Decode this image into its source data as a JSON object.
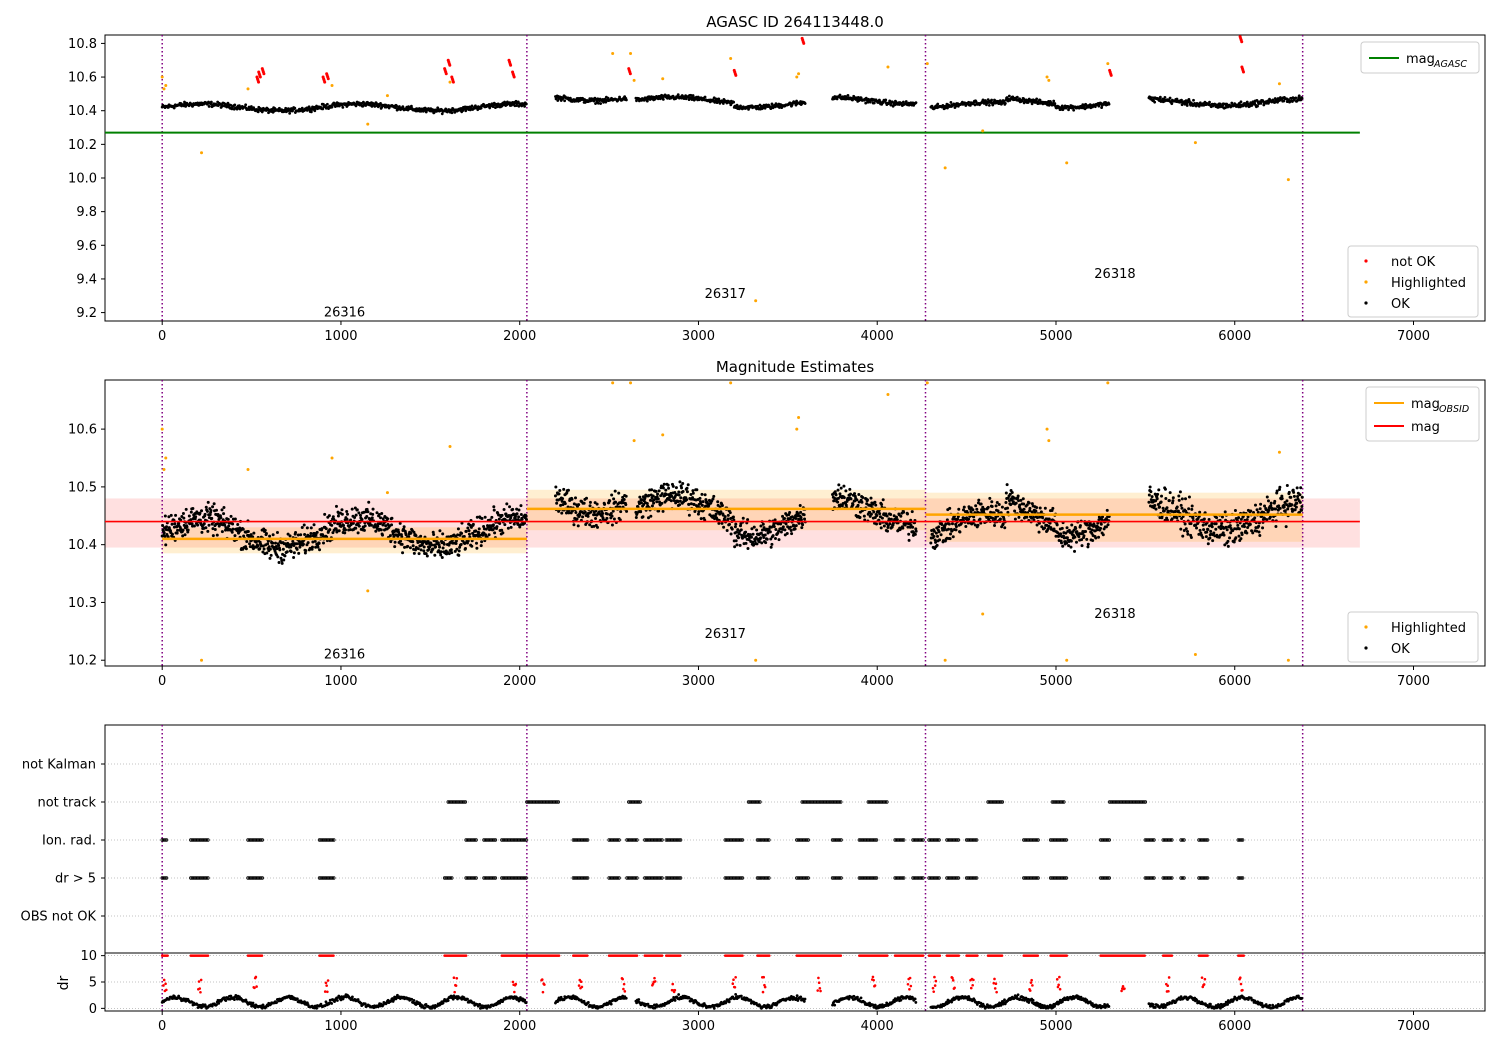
{
  "chart_data": [
    {
      "type": "scatter",
      "title": "AGASC ID 264113448.0",
      "xlabel": "",
      "ylabel": "",
      "xlim": [
        -320,
        7400
      ],
      "ylim": [
        9.15,
        10.85
      ],
      "x_ticks": [
        "0",
        "1000",
        "2000",
        "3000",
        "4000",
        "5000",
        "6000",
        "7000"
      ],
      "y_ticks": [
        "9.2",
        "9.4",
        "9.6",
        "9.8",
        "10.0",
        "10.2",
        "10.4",
        "10.6",
        "10.8"
      ],
      "obsid_boundaries": [
        0,
        2040,
        4270,
        6380
      ],
      "obsid_labels": [
        {
          "text": "26316",
          "x": 1020,
          "y": 9.2
        },
        {
          "text": "26317",
          "x": 3150,
          "y": 9.31
        },
        {
          "text": "26318",
          "x": 5330,
          "y": 9.43
        }
      ],
      "mag_agasc": 10.27,
      "mag_agasc_xrange": [
        -320,
        6700
      ],
      "legend_lines": [
        {
          "name": "mag",
          "sub": "AGASC",
          "color": "#008000"
        }
      ],
      "legend_points": [
        {
          "name": "not OK",
          "color": "#ff0000"
        },
        {
          "name": "Highlighted",
          "color": "#ffa500"
        },
        {
          "name": "OK",
          "color": "#000000"
        }
      ],
      "legend_placement_lines": "top-right",
      "legend_placement_points": "lower-right",
      "series": [
        {
          "name": "OK",
          "color": "#000000",
          "segments": [
            {
              "x0": 0,
              "x1": 2040,
              "base": 10.42,
              "noise": 0.03
            },
            {
              "x0": 2200,
              "x1": 2600,
              "base": 10.48,
              "noise": 0.03
            },
            {
              "x0": 2650,
              "x1": 3200,
              "base": 10.46,
              "noise": 0.03
            },
            {
              "x0": 3200,
              "x1": 3600,
              "base": 10.44,
              "noise": 0.03
            },
            {
              "x0": 3750,
              "x1": 4220,
              "base": 10.46,
              "noise": 0.03
            },
            {
              "x0": 4300,
              "x1": 4720,
              "base": 10.43,
              "noise": 0.03
            },
            {
              "x0": 4720,
              "x1": 5000,
              "base": 10.46,
              "noise": 0.03
            },
            {
              "x0": 5000,
              "x1": 5300,
              "base": 10.44,
              "noise": 0.03
            },
            {
              "x0": 5520,
              "x1": 6380,
              "base": 10.45,
              "noise": 0.035
            }
          ]
        },
        {
          "name": "not OK",
          "color": "#ff0000",
          "points": [
            [
              530,
              10.6
            ],
            [
              540,
              10.63
            ],
            [
              560,
              10.65
            ],
            [
              900,
              10.6
            ],
            [
              920,
              10.62
            ],
            [
              1580,
              10.65
            ],
            [
              1600,
              10.7
            ],
            [
              1620,
              10.6
            ],
            [
              1940,
              10.7
            ],
            [
              1960,
              10.63
            ],
            [
              2610,
              10.65
            ],
            [
              3200,
              10.64
            ],
            [
              3580,
              10.83
            ],
            [
              5300,
              10.64
            ],
            [
              6030,
              10.84
            ],
            [
              6040,
              10.66
            ]
          ]
        },
        {
          "name": "Highlighted",
          "color": "#ffa500",
          "points": [
            [
              0,
              10.6
            ],
            [
              10,
              10.53
            ],
            [
              20,
              10.55
            ],
            [
              220,
              10.15
            ],
            [
              480,
              10.53
            ],
            [
              950,
              10.55
            ],
            [
              1150,
              10.32
            ],
            [
              1260,
              10.49
            ],
            [
              1610,
              10.57
            ],
            [
              2520,
              10.74
            ],
            [
              2620,
              10.74
            ],
            [
              2640,
              10.58
            ],
            [
              2800,
              10.59
            ],
            [
              3180,
              10.71
            ],
            [
              3320,
              9.27
            ],
            [
              3550,
              10.6
            ],
            [
              3560,
              10.62
            ],
            [
              4060,
              10.66
            ],
            [
              4280,
              10.68
            ],
            [
              4380,
              10.06
            ],
            [
              4590,
              10.28
            ],
            [
              4950,
              10.6
            ],
            [
              4960,
              10.58
            ],
            [
              5060,
              10.09
            ],
            [
              5290,
              10.68
            ],
            [
              5780,
              10.21
            ],
            [
              6250,
              10.56
            ],
            [
              6300,
              9.99
            ]
          ]
        }
      ]
    },
    {
      "type": "scatter",
      "title": "Magnitude Estimates",
      "xlabel": "",
      "ylabel": "",
      "xlim": [
        -320,
        7400
      ],
      "ylim": [
        10.19,
        10.685
      ],
      "x_ticks": [
        "0",
        "1000",
        "2000",
        "3000",
        "4000",
        "5000",
        "6000",
        "7000"
      ],
      "y_ticks": [
        "10.2",
        "10.3",
        "10.4",
        "10.5",
        "10.6"
      ],
      "obsid_boundaries": [
        0,
        2040,
        4270,
        6380
      ],
      "obsid_labels": [
        {
          "text": "26316",
          "x": 1020,
          "y": 10.21
        },
        {
          "text": "26317",
          "x": 3150,
          "y": 10.245
        },
        {
          "text": "26318",
          "x": 5330,
          "y": 10.28
        }
      ],
      "mag": 10.44,
      "mag_band": [
        10.395,
        10.48
      ],
      "mag_xrange": [
        -320,
        6700
      ],
      "mag_obsid": [
        {
          "x0": 0,
          "x1": 2040,
          "value": 10.41,
          "band": [
            10.385,
            10.43
          ]
        },
        {
          "x0": 2040,
          "x1": 4270,
          "value": 10.462,
          "band": [
            10.425,
            10.495
          ]
        },
        {
          "x0": 4270,
          "x1": 6380,
          "value": 10.452,
          "band": [
            10.405,
            10.49
          ]
        }
      ],
      "legend_lines": [
        {
          "name": "mag",
          "sub": "OBSID",
          "color": "#ffa500"
        },
        {
          "name": "mag",
          "sub": "",
          "color": "#ff0000"
        }
      ],
      "legend_points": [
        {
          "name": "Highlighted",
          "color": "#ffa500"
        },
        {
          "name": "OK",
          "color": "#000000"
        }
      ],
      "legend_placement_lines": "top-right",
      "legend_placement_points": "lower-right"
    },
    {
      "type": "scatter",
      "title": "",
      "xlabel": "",
      "ylabel": "",
      "xlim": [
        -320,
        7400
      ],
      "categories": [
        "not Kalman",
        "not track",
        "Ion. rad.",
        "dr > 5",
        "OBS not OK"
      ],
      "flag_segments": {
        "not track": [
          [
            1600,
            1700
          ],
          [
            2040,
            2220
          ],
          [
            2610,
            2680
          ],
          [
            3280,
            3350
          ],
          [
            3580,
            3800
          ],
          [
            3950,
            4060
          ],
          [
            4620,
            4700
          ],
          [
            4980,
            5050
          ],
          [
            5300,
            5500
          ]
        ],
        "Ion. rad.": [
          [
            0,
            30
          ],
          [
            160,
            260
          ],
          [
            480,
            560
          ],
          [
            880,
            960
          ],
          [
            1700,
            1760
          ],
          [
            1800,
            1870
          ],
          [
            1900,
            2040
          ],
          [
            2300,
            2380
          ],
          [
            2500,
            2560
          ],
          [
            2600,
            2660
          ],
          [
            2700,
            2800
          ],
          [
            2820,
            2900
          ],
          [
            3150,
            3250
          ],
          [
            3330,
            3400
          ],
          [
            3550,
            3620
          ],
          [
            3750,
            3800
          ],
          [
            3900,
            4000
          ],
          [
            4100,
            4150
          ],
          [
            4200,
            4260
          ],
          [
            4290,
            4350
          ],
          [
            4390,
            4460
          ],
          [
            4500,
            4560
          ],
          [
            4820,
            4900
          ],
          [
            4970,
            5060
          ],
          [
            5250,
            5300
          ],
          [
            5500,
            5550
          ],
          [
            5600,
            5650
          ],
          [
            5700,
            5720
          ],
          [
            5800,
            5850
          ],
          [
            6020,
            6050
          ]
        ],
        "dr > 5": [
          [
            0,
            30
          ],
          [
            160,
            260
          ],
          [
            480,
            560
          ],
          [
            880,
            960
          ],
          [
            1580,
            1620
          ],
          [
            1700,
            1760
          ],
          [
            1800,
            1870
          ],
          [
            1900,
            2040
          ],
          [
            2300,
            2380
          ],
          [
            2500,
            2560
          ],
          [
            2600,
            2660
          ],
          [
            2700,
            2800
          ],
          [
            2820,
            2900
          ],
          [
            3150,
            3250
          ],
          [
            3330,
            3400
          ],
          [
            3550,
            3620
          ],
          [
            3750,
            3800
          ],
          [
            3900,
            4000
          ],
          [
            4100,
            4150
          ],
          [
            4200,
            4260
          ],
          [
            4290,
            4350
          ],
          [
            4390,
            4460
          ],
          [
            4500,
            4560
          ],
          [
            4820,
            4900
          ],
          [
            4970,
            5060
          ],
          [
            5250,
            5300
          ],
          [
            5500,
            5550
          ],
          [
            5600,
            5650
          ],
          [
            5700,
            5720
          ],
          [
            5800,
            5850
          ],
          [
            6020,
            6050
          ]
        ]
      }
    },
    {
      "type": "scatter",
      "title": "",
      "xlabel": "",
      "ylabel": "dr",
      "xlim": [
        -320,
        7400
      ],
      "ylim": [
        -0.5,
        10.5
      ],
      "x_ticks": [
        "0",
        "1000",
        "2000",
        "3000",
        "4000",
        "5000",
        "6000",
        "7000"
      ],
      "y_ticks": [
        "0",
        "5",
        "10"
      ],
      "dr_red_clusters": [
        [
          0,
          30
        ],
        [
          160,
          260
        ],
        [
          480,
          560
        ],
        [
          880,
          960
        ],
        [
          1580,
          1700
        ],
        [
          1900,
          2040
        ],
        [
          2040,
          2220
        ],
        [
          2300,
          2380
        ],
        [
          2500,
          2660
        ],
        [
          2700,
          2800
        ],
        [
          2820,
          2900
        ],
        [
          3150,
          3250
        ],
        [
          3330,
          3400
        ],
        [
          3550,
          3800
        ],
        [
          3900,
          4060
        ],
        [
          4100,
          4260
        ],
        [
          4290,
          4350
        ],
        [
          4390,
          4460
        ],
        [
          4500,
          4560
        ],
        [
          4620,
          4700
        ],
        [
          4820,
          4900
        ],
        [
          4970,
          5060
        ],
        [
          5250,
          5500
        ],
        [
          5600,
          5650
        ],
        [
          5800,
          5850
        ],
        [
          6020,
          6050
        ]
      ]
    }
  ]
}
